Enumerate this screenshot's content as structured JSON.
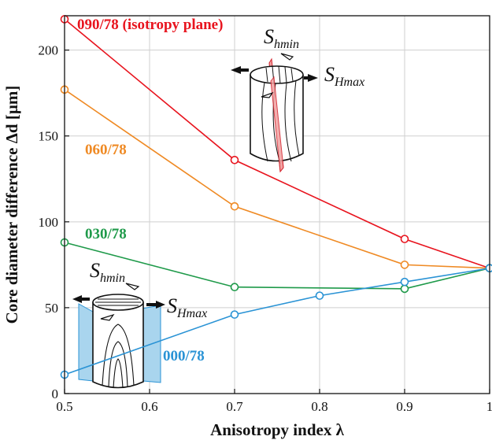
{
  "chart_data": {
    "type": "line",
    "xlabel": "Anisotropy index λ",
    "ylabel": "Core diameter difference Δd [µm]",
    "xlim": [
      0.5,
      1.0
    ],
    "ylim": [
      0,
      220
    ],
    "xticks": [
      "0.5",
      "0.6",
      "0.7",
      "0.8",
      "0.9",
      "1"
    ],
    "yticks": [
      "0",
      "50",
      "100",
      "150",
      "200"
    ],
    "grid": true,
    "series": [
      {
        "name": "090/78 (isotropy plane)",
        "color": "#e8141e",
        "x": [
          0.5,
          0.7,
          0.9,
          1.0
        ],
        "y": [
          218,
          136,
          90,
          73
        ]
      },
      {
        "name": "060/78",
        "color": "#ef8a24",
        "x": [
          0.5,
          0.7,
          0.9,
          1.0
        ],
        "y": [
          177,
          109,
          75,
          73
        ]
      },
      {
        "name": "030/78",
        "color": "#1f9a4a",
        "x": [
          0.5,
          0.7,
          0.9,
          1.0
        ],
        "y": [
          88,
          62,
          61,
          73
        ]
      },
      {
        "name": "000/78",
        "color": "#2a93d5",
        "x": [
          0.5,
          0.7,
          0.8,
          0.9,
          1.0
        ],
        "y": [
          11,
          46,
          57,
          65,
          73
        ]
      }
    ],
    "annotations": {
      "s_hmin_base": "S",
      "s_hmin_sub": "hmin",
      "s_hmax_base": "S",
      "s_hmax_sub": "Hmax"
    }
  }
}
